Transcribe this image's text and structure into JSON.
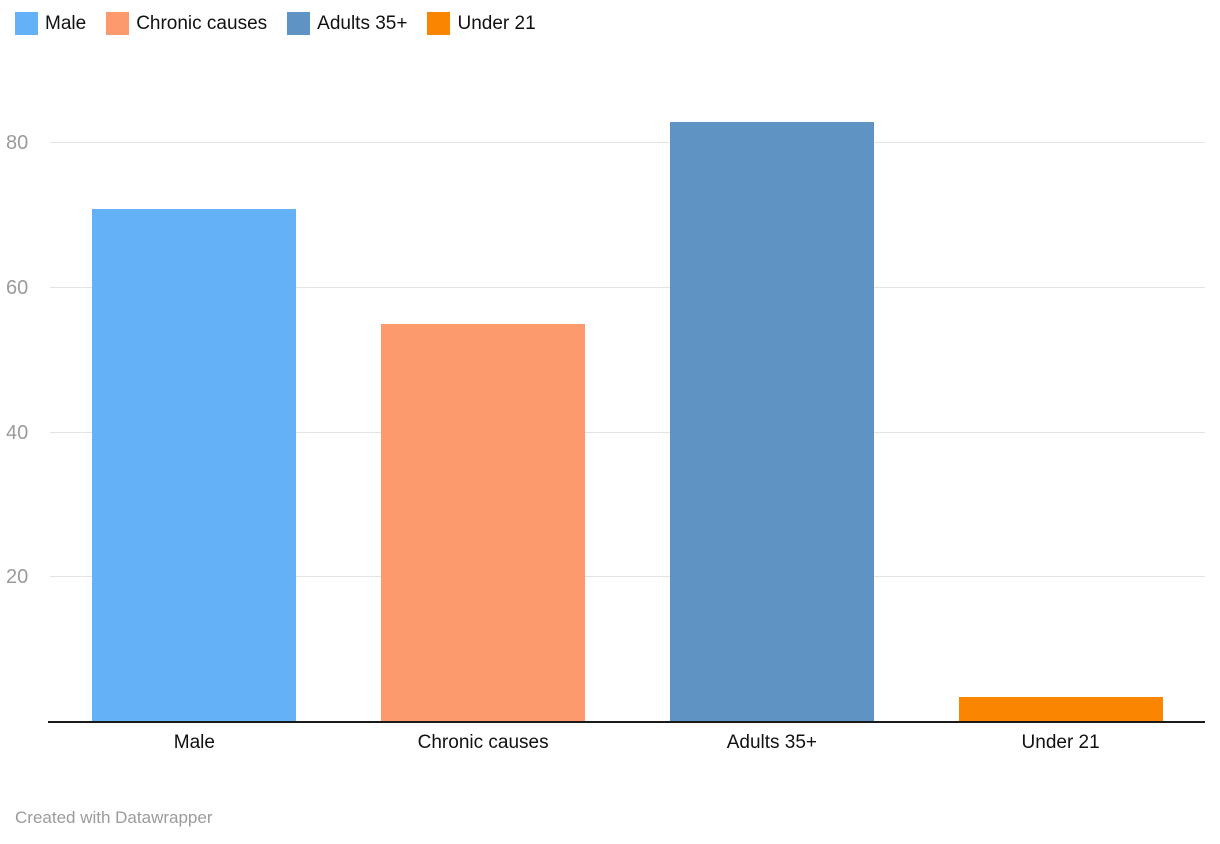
{
  "chart_data": {
    "type": "bar",
    "title": "",
    "xlabel": "",
    "ylabel": "",
    "categories": [
      "Male",
      "Chronic causes",
      "Adults 35+",
      "Under 21"
    ],
    "values": [
      71,
      55,
      83,
      3.5
    ],
    "colors": [
      "#64b1f7",
      "#fc9a6d",
      "#5f93c3",
      "#f98500"
    ],
    "legend": [
      {
        "label": "Male",
        "color": "#64b1f7"
      },
      {
        "label": "Chronic causes",
        "color": "#fc9a6d"
      },
      {
        "label": "Adults 35+",
        "color": "#5f93c3"
      },
      {
        "label": "Under 21",
        "color": "#f98500"
      }
    ],
    "legend_position": "top-left",
    "y_ticks": [
      20,
      40,
      60,
      80
    ],
    "ylim": [
      0,
      86
    ],
    "grid": true,
    "gridline_color": "#e3e3e3",
    "baseline_color": "#1a1a1a"
  },
  "footer": {
    "credit": "Created with Datawrapper"
  }
}
